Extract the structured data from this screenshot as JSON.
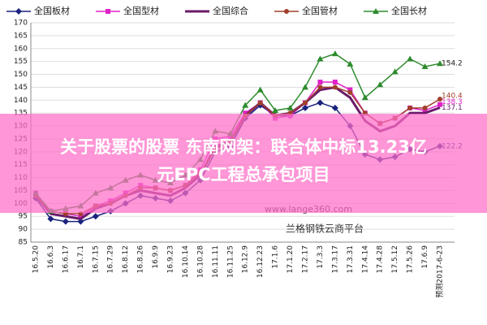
{
  "chart_data": {
    "type": "line",
    "categories": [
      "16.5.20",
      "16.6.3",
      "16.6.17",
      "16.7.1",
      "16.7.15",
      "16.7.29",
      "16.8.12",
      "16.8.26",
      "16.9.9",
      "16.9.23",
      "16.10.14",
      "16.10.28",
      "16.11.11",
      "16.11.25",
      "16.12.9",
      "16.12.23",
      "17.1.6",
      "17.1.20",
      "17.2.17",
      "17.3.3",
      "17.3.17",
      "17.3.31",
      "17.4.14",
      "17.4.28",
      "17.5.12",
      "17.5.26",
      "17.6.9",
      "预测2017-6-23"
    ],
    "series": [
      {
        "name": "全国板材",
        "color": "#1a237e",
        "marker": "diamond",
        "values": [
          102,
          94,
          93,
          93,
          95,
          97,
          100,
          103,
          102,
          101,
          104,
          109,
          120,
          122,
          133,
          138,
          134,
          134,
          137,
          139,
          137,
          130,
          119,
          117,
          118,
          121,
          120,
          122.2
        ]
      },
      {
        "name": "全国型材",
        "color": "#e020c8",
        "marker": "square",
        "values": [
          104,
          97,
          96,
          95,
          99,
          101,
          104,
          107,
          106,
          105,
          107,
          113,
          125,
          126,
          135,
          139,
          133,
          134,
          139,
          147,
          147,
          144,
          135,
          131,
          133,
          137,
          136,
          138.3
        ]
      },
      {
        "name": "全国综合",
        "color": "#6a1b6a",
        "marker": "none",
        "values": [
          103,
          96,
          95,
          94,
          98,
          100,
          103,
          105,
          104,
          103,
          106,
          111,
          122,
          124,
          134,
          139,
          134,
          135,
          139,
          144,
          145,
          141,
          132,
          128,
          130,
          135,
          135,
          137.1
        ]
      },
      {
        "name": "全国管材",
        "color": "#a0402a",
        "marker": "circle",
        "values": [
          103,
          97,
          96,
          96,
          99,
          100,
          103,
          106,
          106,
          105,
          107,
          112,
          121,
          124,
          134,
          139,
          134,
          135,
          139,
          145,
          145,
          143,
          135,
          131,
          133,
          137,
          137,
          140.4
        ]
      },
      {
        "name": "全国长材",
        "color": "#2e8b2e",
        "marker": "triangle",
        "values": [
          104,
          97,
          98,
          99,
          104,
          106,
          109,
          111,
          109,
          108,
          111,
          117,
          128,
          127,
          138,
          144,
          136,
          137,
          145,
          156,
          158,
          154,
          141,
          146,
          151,
          156,
          153,
          154.2
        ]
      }
    ],
    "ylim": [
      85,
      170
    ],
    "yticks": [
      85,
      90,
      95,
      100,
      105,
      110,
      115,
      120,
      125,
      130,
      135,
      140,
      145,
      150,
      155,
      160,
      165,
      170
    ],
    "grid": true
  },
  "watermark": {
    "site": "www.lange360.com",
    "platform": "兰格钢铁云商平台"
  },
  "overlay": {
    "line1": "关于股票的股票   东南网架：联合体中标13.23亿",
    "line2": "元EPC工程总承包项目"
  }
}
